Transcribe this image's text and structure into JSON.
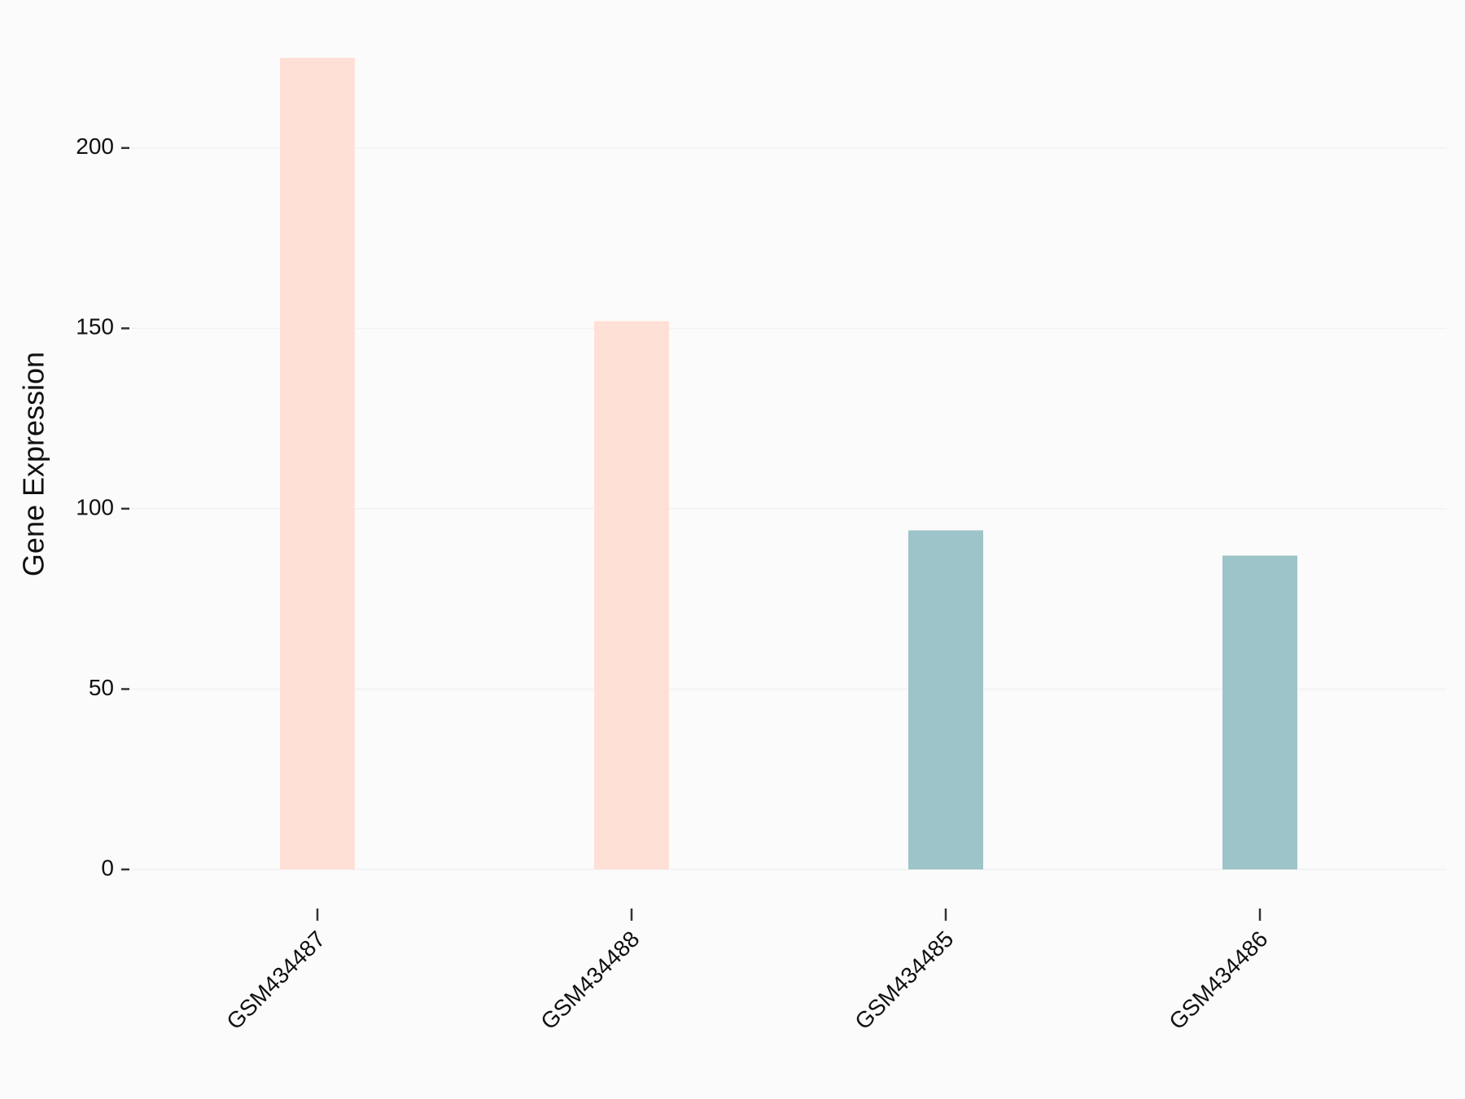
{
  "chart_data": {
    "type": "bar",
    "y_label": "Gene Expression",
    "categories": [
      "GSM434487",
      "GSM434488",
      "GSM434485",
      "GSM434486"
    ],
    "values": [
      225,
      152,
      94,
      87
    ],
    "colors": [
      "#ffe0d6",
      "#ffe0d6",
      "#9dc4c8",
      "#9dc4c8"
    ],
    "ylim": [
      0,
      225
    ],
    "yticks": [
      0,
      50,
      100,
      150,
      200
    ],
    "grid": true
  }
}
